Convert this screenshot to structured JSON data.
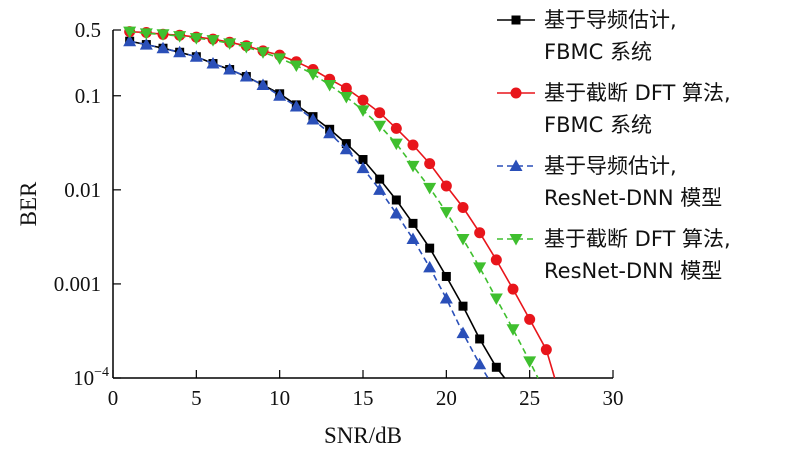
{
  "chart_data": {
    "type": "line",
    "xlabel": "SNR/dB",
    "ylabel": "BER",
    "xlim": [
      0,
      30
    ],
    "ylim": [
      0.0001,
      0.5
    ],
    "yscale": "log",
    "x_ticks": [
      0,
      5,
      10,
      15,
      20,
      25,
      30
    ],
    "y_ticks": [
      {
        "value": 0.5,
        "label": "0.5"
      },
      {
        "value": 0.1,
        "label": "0.1"
      },
      {
        "value": 0.01,
        "label": "0.01"
      },
      {
        "value": 0.001,
        "label": "0.001"
      },
      {
        "value": 0.0001,
        "label": "10",
        "sup": "−4"
      }
    ],
    "grid": false,
    "legend_position": "top-right",
    "series": [
      {
        "name_lines": [
          "基于导频估计,",
          "FBMC 系统"
        ],
        "color": "#000000",
        "marker": "square",
        "dash": "solid",
        "x": [
          1,
          2,
          3,
          4,
          5,
          6,
          7,
          8,
          9,
          10,
          11,
          12,
          13,
          14,
          15,
          16,
          17,
          18,
          19,
          20,
          21,
          22,
          23,
          23.5
        ],
        "y": [
          0.38,
          0.35,
          0.32,
          0.29,
          0.26,
          0.22,
          0.19,
          0.16,
          0.13,
          0.105,
          0.08,
          0.06,
          0.044,
          0.031,
          0.021,
          0.013,
          0.0078,
          0.0044,
          0.0024,
          0.0012,
          0.00058,
          0.00026,
          0.00013,
          0.0001
        ]
      },
      {
        "name_lines": [
          "基于截断 DFT 算法,",
          "FBMC 系统"
        ],
        "color": "#e8151b",
        "marker": "circle",
        "dash": "solid",
        "x": [
          1,
          2,
          3,
          4,
          5,
          6,
          7,
          8,
          9,
          10,
          11,
          12,
          13,
          14,
          15,
          16,
          17,
          18,
          19,
          20,
          21,
          22,
          23,
          24,
          25,
          26,
          26.5
        ],
        "y": [
          0.48,
          0.47,
          0.45,
          0.44,
          0.42,
          0.4,
          0.37,
          0.34,
          0.3,
          0.27,
          0.23,
          0.19,
          0.15,
          0.12,
          0.09,
          0.066,
          0.045,
          0.03,
          0.019,
          0.011,
          0.0065,
          0.0035,
          0.0018,
          0.00088,
          0.00042,
          0.0002,
          0.0001
        ]
      },
      {
        "name_lines": [
          "基于导频估计,",
          "ResNet-DNN 模型"
        ],
        "color": "#2a4fb8",
        "marker": "triangle-up",
        "dash": "dashed",
        "x": [
          1,
          2,
          3,
          4,
          5,
          6,
          7,
          8,
          9,
          10,
          11,
          12,
          13,
          14,
          15,
          16,
          17,
          18,
          19,
          20,
          21,
          22,
          22.5
        ],
        "y": [
          0.38,
          0.35,
          0.32,
          0.29,
          0.26,
          0.22,
          0.19,
          0.16,
          0.13,
          0.1,
          0.077,
          0.056,
          0.04,
          0.027,
          0.017,
          0.01,
          0.0056,
          0.003,
          0.0015,
          0.0007,
          0.0003,
          0.00014,
          0.0001
        ]
      },
      {
        "name_lines": [
          "基于截断 DFT 算法,",
          "ResNet-DNN 模型"
        ],
        "color": "#3fbf2e",
        "marker": "triangle-down",
        "dash": "dashed",
        "x": [
          1,
          2,
          3,
          4,
          5,
          6,
          7,
          8,
          9,
          10,
          11,
          12,
          13,
          14,
          15,
          16,
          17,
          18,
          19,
          20,
          21,
          22,
          23,
          24,
          25,
          25.5
        ],
        "y": [
          0.48,
          0.46,
          0.45,
          0.43,
          0.41,
          0.39,
          0.36,
          0.33,
          0.29,
          0.25,
          0.21,
          0.17,
          0.13,
          0.097,
          0.07,
          0.048,
          0.031,
          0.018,
          0.0105,
          0.0058,
          0.003,
          0.0015,
          0.0007,
          0.00033,
          0.00015,
          0.0001
        ]
      }
    ]
  }
}
